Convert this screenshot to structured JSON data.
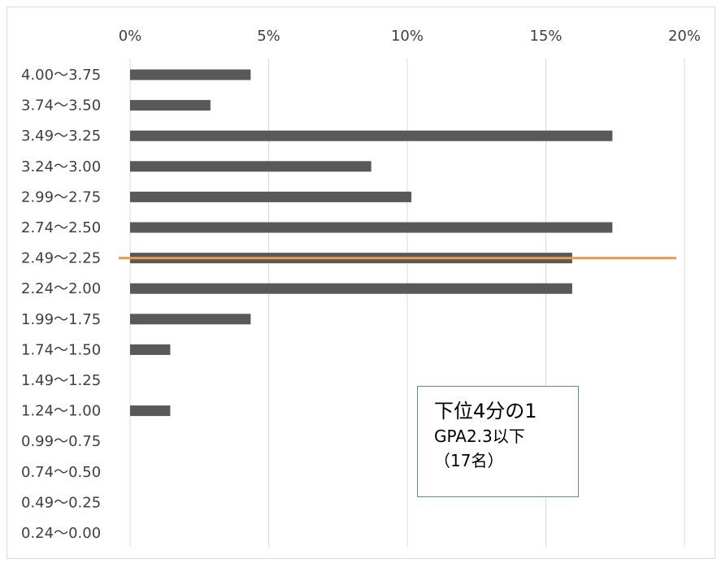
{
  "chart_data": {
    "type": "bar",
    "orientation": "horizontal",
    "categories": [
      "4.00〜3.75",
      "3.74〜3.50",
      "3.49〜3.25",
      "3.24〜3.00",
      "2.99〜2.75",
      "2.74〜2.50",
      "2.49〜2.25",
      "2.24〜2.00",
      "1.99〜1.75",
      "1.74〜1.50",
      "1.49〜1.25",
      "1.24〜1.00",
      "0.99〜0.75",
      "0.74〜0.50",
      "0.49〜0.25",
      "0.24〜0.00"
    ],
    "values": [
      4.35,
      2.9,
      17.4,
      8.7,
      10.15,
      17.4,
      15.95,
      15.95,
      4.35,
      1.45,
      0,
      1.45,
      0,
      0,
      0,
      0
    ],
    "xlim": [
      0,
      20
    ],
    "x_ticks": [
      0,
      5,
      10,
      15,
      20
    ],
    "x_tick_labels": [
      "0%",
      "5%",
      "10%",
      "15%",
      "20%"
    ],
    "x_axis_position": "top",
    "grid": true,
    "bar_color": "#595959",
    "reference_line": {
      "category": "2.49〜2.25",
      "color": "#ed9a4a"
    },
    "title": "",
    "xlabel": "",
    "ylabel": ""
  },
  "annotation": {
    "line1": "下位4分の1",
    "line2": "GPA2.3以下",
    "line3": "（17名）",
    "border_color": "#5b87c5"
  }
}
